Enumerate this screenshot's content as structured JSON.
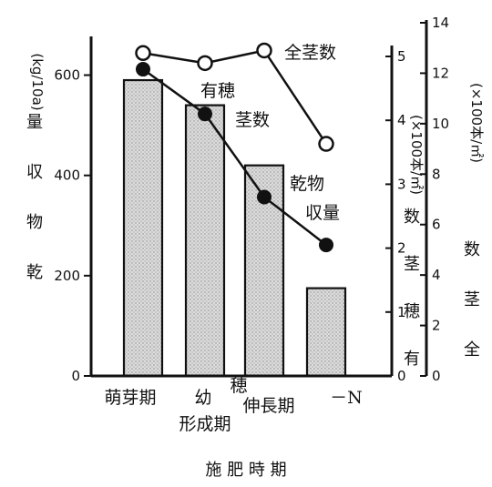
{
  "chart_data": {
    "type": "bar",
    "categories": [
      "萌芽期",
      "幼穂形成期",
      "伸長期",
      "－N"
    ],
    "category_lines": [
      [
        "萌芽期"
      ],
      [
        "幼",
        "形成期"
      ],
      [
        "穂",
        "伸長期"
      ],
      [
        "－N"
      ]
    ],
    "xlabel": "施 肥 時 期",
    "ylabel_left": "乾 物 収 量 (kg/10a)",
    "ylabel_left_unit": "(kg/10a)",
    "ylabel_right1": "有 穂 茎 数 (×100本/㎡)",
    "ylabel_right1_unit": "(×100本/㎡)",
    "ylabel_right2": "全 茎 数 (×100本/㎡)",
    "ylabel_right2_unit": "(×100本/㎡)",
    "ylim_left": [
      0,
      650
    ],
    "yticks_left": [
      0,
      200,
      400,
      600
    ],
    "ylim_right1": [
      0,
      5
    ],
    "yticks_right1": [
      0,
      1,
      2,
      3,
      4,
      5
    ],
    "ylim_right2": [
      0,
      14
    ],
    "yticks_right2": [
      0,
      2,
      4,
      6,
      8,
      10,
      12,
      14
    ],
    "series": [
      {
        "name": "乾物収量",
        "kind": "bar",
        "axis": "left",
        "values": [
          590,
          540,
          420,
          175
        ]
      },
      {
        "name": "全茎数",
        "kind": "line",
        "marker": "open-circle",
        "axis": "right2",
        "values": [
          12.8,
          12.4,
          12.9,
          9.2
        ]
      },
      {
        "name": "有穂茎数",
        "kind": "line",
        "marker": "filled-circle",
        "axis": "right1",
        "values": [
          4.8,
          4.1,
          2.8,
          2.05
        ]
      },
      {
        "name": "乾物収量",
        "kind": "line",
        "marker": "filled-circle",
        "axis": "left",
        "values": [
          null,
          null,
          null,
          null
        ]
      }
    ],
    "annotations": {
      "total_stems": "全茎数",
      "panicle_1": "有穂",
      "panicle_2": "茎数",
      "dry_1": "乾物",
      "dry_2": "収量"
    },
    "grid": false,
    "bar_fill": "stippled-gray",
    "colors": {
      "ink": "#111111",
      "bar": "#d8d8d8"
    }
  }
}
